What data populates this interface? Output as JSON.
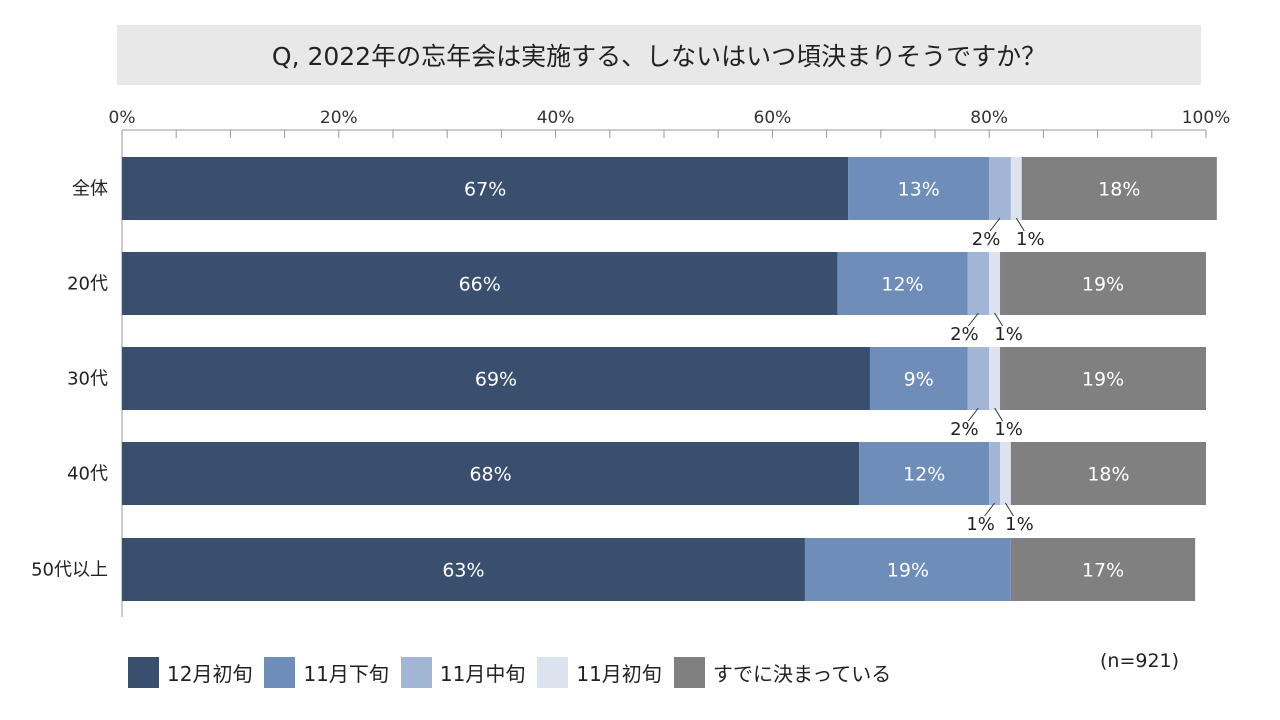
{
  "title": "Q, 2022年の忘年会は実施する、しないはいつ頃決まりそうですか？",
  "note": "(n=921)",
  "chart_data": {
    "type": "bar",
    "orientation": "horizontal",
    "stacked": true,
    "categories": [
      "全体",
      "20代",
      "30代",
      "40代",
      "50代以上"
    ],
    "x_ticks": [
      "0%",
      "20%",
      "40%",
      "60%",
      "80%",
      "100%"
    ],
    "xlim": [
      0,
      100
    ],
    "legend_position": "bottom",
    "series": [
      {
        "name": "12月初旬",
        "color": "#3a4f6e",
        "label_color": "#ffffff",
        "values": [
          67,
          66,
          69,
          68,
          63
        ]
      },
      {
        "name": "11月下旬",
        "color": "#6f8db9",
        "label_color": "#ffffff",
        "values": [
          13,
          12,
          9,
          12,
          19
        ]
      },
      {
        "name": "11月中旬",
        "color": "#a2b5d4",
        "label_color": "#222222",
        "values": [
          2,
          2,
          2,
          1,
          null
        ]
      },
      {
        "name": "11月初旬",
        "color": "#dce3ef",
        "label_color": "#222222",
        "values": [
          1,
          1,
          1,
          1,
          null
        ]
      },
      {
        "name": "すでに決まっている",
        "color": "#808080",
        "label_color": "#ffffff",
        "values": [
          18,
          19,
          19,
          18,
          17
        ]
      }
    ]
  }
}
